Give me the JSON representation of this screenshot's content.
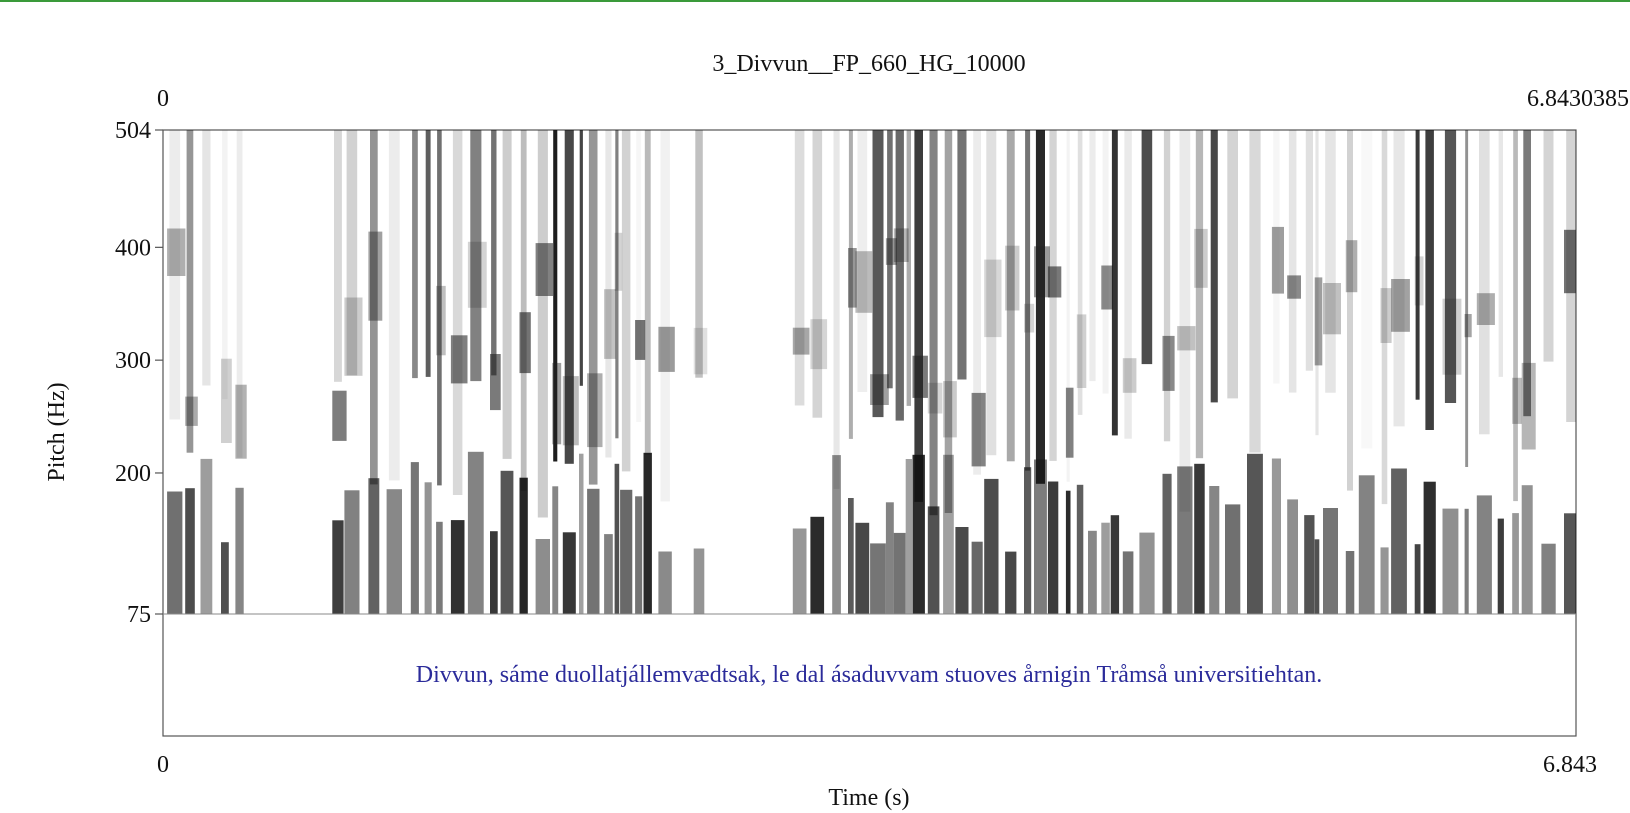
{
  "chart_data": {
    "type": "heatmap",
    "title": "3_Divvun__FP_660_HG_10000",
    "xlabel": "Time (s)",
    "ylabel": "Pitch (Hz)",
    "xlim": [
      0,
      6.843
    ],
    "ylim": [
      75,
      504
    ],
    "top_axis_labels": [
      "0",
      "6.8430385"
    ],
    "bottom_axis_labels": [
      "0",
      "6.843"
    ],
    "y_ticks": [
      {
        "value": 504,
        "label": "504"
      },
      {
        "value": 400,
        "label": "400"
      },
      {
        "value": 300,
        "label": "300"
      },
      {
        "value": 200,
        "label": "200"
      },
      {
        "value": 75,
        "label": "75"
      }
    ],
    "transcription": "Divvun, sáme duollatjállemvædtsak, le dal ásaduvvam stuoves årnigin Tråmså universitiehtan.",
    "colors": {
      "ink": "#111111",
      "transcription": "#2b2b9a",
      "frame": "#555555",
      "top_rule": "#3a9a3a"
    },
    "grid": false,
    "legend": "none",
    "segments": [
      {
        "start": 0.02,
        "end": 0.43,
        "intensity": 0.85
      },
      {
        "start": 0.82,
        "end": 2.46,
        "intensity": 0.95
      },
      {
        "start": 2.57,
        "end": 2.62,
        "intensity": 0.45
      },
      {
        "start": 3.05,
        "end": 6.83,
        "intensity": 0.9
      }
    ]
  }
}
